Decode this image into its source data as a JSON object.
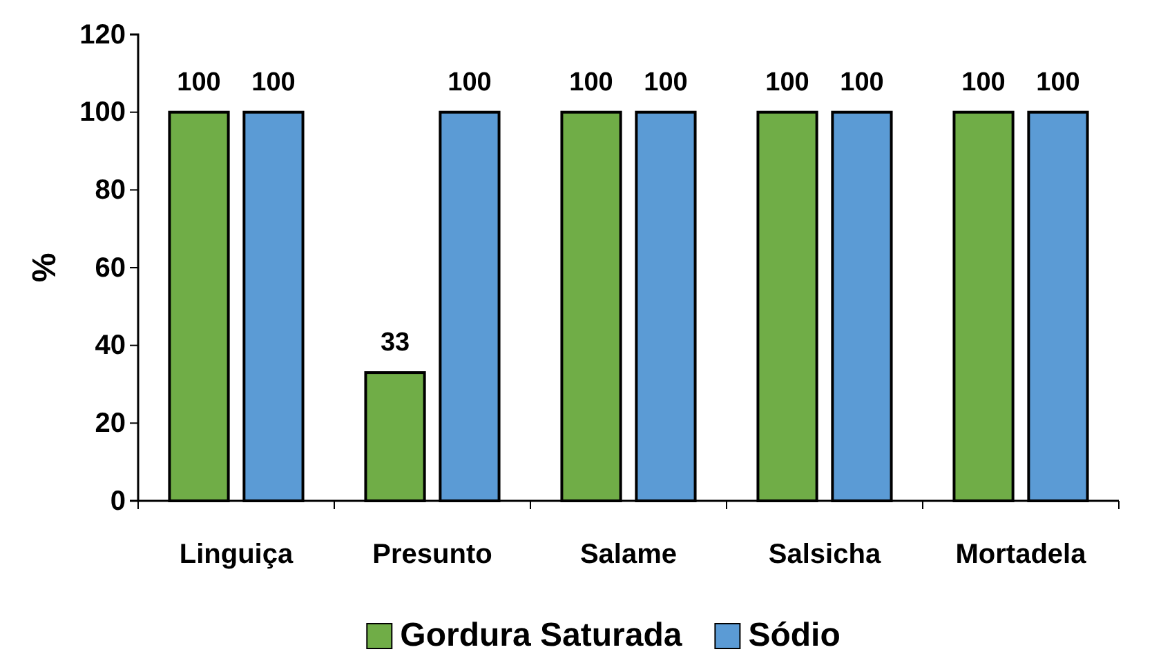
{
  "chart_data": {
    "type": "bar",
    "ylabel": "%",
    "categories": [
      "Linguiça",
      "Presunto",
      "Salame",
      "Salsicha",
      "Mortadela"
    ],
    "series": [
      {
        "name": "Gordura Saturada",
        "color": "#70ad47",
        "values": [
          100,
          33,
          100,
          100,
          100
        ]
      },
      {
        "name": "Sódio",
        "color": "#5b9bd5",
        "values": [
          100,
          100,
          100,
          100,
          100
        ]
      }
    ],
    "ylim": [
      0,
      120
    ],
    "yticks": [
      0,
      20,
      40,
      60,
      80,
      100,
      120
    ],
    "data_labels": true,
    "grid": false,
    "legend": "bottom"
  }
}
